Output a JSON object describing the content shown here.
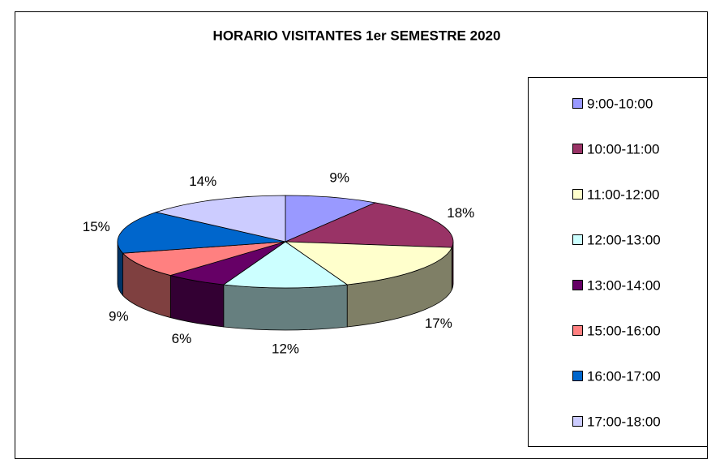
{
  "chart_data": {
    "type": "pie3d",
    "title": "HORARIO VISITANTES 1er SEMESTRE 2020",
    "categories": [
      "9:00-10:00",
      "10:00-11:00",
      "11:00-12:00",
      "12:00-13:00",
      "13:00-14:00",
      "15:00-16:00",
      "16:00-17:00",
      "17:00-18:00"
    ],
    "values": [
      9,
      18,
      17,
      12,
      6,
      9,
      15,
      14
    ],
    "value_labels": [
      "9%",
      "18%",
      "17%",
      "12%",
      "6%",
      "9%",
      "15%",
      "14%"
    ],
    "colors": [
      "#9999ff",
      "#993366",
      "#ffffcc",
      "#ccffff",
      "#660066",
      "#ff8080",
      "#0066cc",
      "#ccccff"
    ],
    "legend": "right"
  }
}
